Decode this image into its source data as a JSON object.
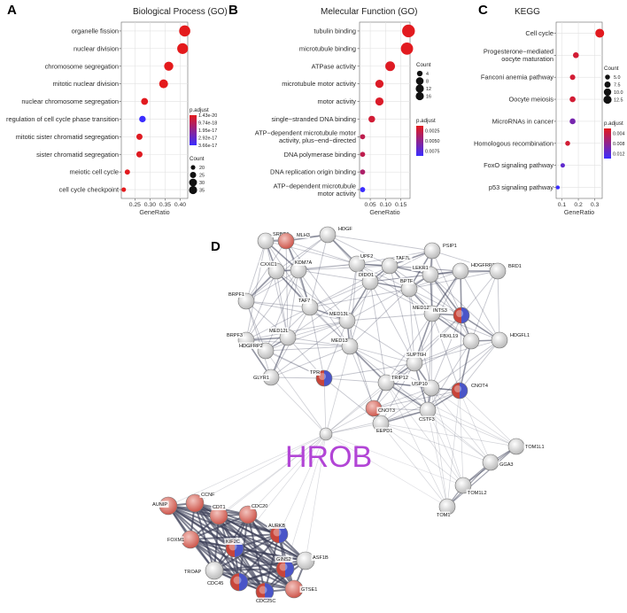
{
  "chart_data": [
    {
      "id": "A",
      "type": "scatter",
      "panel_letter": "A",
      "title": "Biological Process (GO)",
      "xlabel": "GeneRatio",
      "ylabel": "",
      "xticks": [
        0.25,
        0.3,
        0.35,
        0.4
      ],
      "xtick_labels": [
        "0.25",
        "0.30",
        "0.35",
        "0.40"
      ],
      "xlim": [
        0.205,
        0.425
      ],
      "grid": true,
      "color_scale": {
        "low": "#e41a1c",
        "high": "#3b2dff",
        "min": 1.43e-20,
        "max": 3.66e-17
      },
      "size_scale": {
        "min": 18,
        "max": 40,
        "rmin": 2.2,
        "rmax": 6.3
      },
      "legend": {
        "count_title": "Count",
        "count_values": [
          20,
          25,
          30,
          35
        ],
        "count_labels": [
          "20",
          "25",
          "30",
          "35"
        ],
        "padj_title": "p.adjust",
        "padj_labels": [
          "1.43e-20",
          "9.74e-18",
          "1.95e-17",
          "2.92e-17",
          "3.66e-17"
        ]
      },
      "terms": [
        {
          "label": "organelle fission",
          "ratio": 0.415,
          "count": 40,
          "padj": 1.5e-20
        },
        {
          "label": "nuclear division",
          "ratio": 0.408,
          "count": 39,
          "padj": 2e-20
        },
        {
          "label": "chromosome segregation",
          "ratio": 0.362,
          "count": 34,
          "padj": 3e-20
        },
        {
          "label": "mitotic nuclear division",
          "ratio": 0.345,
          "count": 33,
          "padj": 2.5e-20
        },
        {
          "label": "nuclear chromosome segregation",
          "ratio": 0.282,
          "count": 27,
          "padj": 5e-19
        },
        {
          "label": "regulation of cell cycle phase transition",
          "ratio": 0.275,
          "count": 26,
          "padj": 3.66e-17
        },
        {
          "label": "mitotic sister chromatid segregation",
          "ratio": 0.265,
          "count": 25,
          "padj": 1e-18
        },
        {
          "label": "sister chromatid segregation",
          "ratio": 0.265,
          "count": 25,
          "padj": 1e-18
        },
        {
          "label": "meiotic cell cycle",
          "ratio": 0.225,
          "count": 22,
          "padj": 5e-19
        },
        {
          "label": "cell cycle checkpoint",
          "ratio": 0.213,
          "count": 20,
          "padj": 1e-19
        }
      ]
    },
    {
      "id": "B",
      "type": "scatter",
      "panel_letter": "B",
      "title": "Melecular Function (GO)",
      "xlabel": "GeneRatio",
      "ylabel": "",
      "xticks": [
        0.05,
        0.1,
        0.15
      ],
      "xtick_labels": [
        "0.05",
        "0.10",
        "0.15"
      ],
      "xlim": [
        0.015,
        0.18
      ],
      "grid": true,
      "color_scale": {
        "low": "#e41a1c",
        "high": "#3b2dff",
        "min": 0.0,
        "max": 0.009
      },
      "size_scale": {
        "min": 2,
        "max": 18,
        "rmin": 2.6,
        "rmax": 7.2
      },
      "legend": {
        "count_title": "Count",
        "count_values": [
          4,
          8,
          12,
          16
        ],
        "count_labels": [
          "4",
          "8",
          "12",
          "16"
        ],
        "padj_title": "p.adjust",
        "padj_labels": [
          "0.0025",
          "0.0050",
          "0.0075"
        ]
      },
      "terms": [
        {
          "label": "tubulin binding",
          "ratio_lines": [
            "tubulin binding"
          ],
          "ratio": 0.175,
          "count": 18,
          "padj": 0.0001
        },
        {
          "label": "microtubule binding",
          "ratio_lines": [
            "microtubule binding"
          ],
          "ratio": 0.17,
          "count": 17,
          "padj": 0.0001
        },
        {
          "label": "ATPase activity",
          "ratio_lines": [
            "ATPase activity"
          ],
          "ratio": 0.115,
          "count": 12,
          "padj": 0.0003
        },
        {
          "label": "microtubule motor activity",
          "ratio_lines": [
            "microtubule motor activity"
          ],
          "ratio": 0.08,
          "count": 9,
          "padj": 0.0004
        },
        {
          "label": "motor activity",
          "ratio_lines": [
            "motor activity"
          ],
          "ratio": 0.08,
          "count": 9,
          "padj": 0.0005
        },
        {
          "label": "single−stranded DNA binding",
          "ratio_lines": [
            "single−stranded DNA binding"
          ],
          "ratio": 0.055,
          "count": 6,
          "padj": 0.001
        },
        {
          "label": "ATP−dependent microtubule motor activity, plus−end−directed",
          "ratio_lines": [
            "ATP−dependent microtubule motor",
            "activity, plus−end−directed"
          ],
          "ratio": 0.025,
          "count": 3,
          "padj": 0.002
        },
        {
          "label": "DNA polymerase binding",
          "ratio_lines": [
            "DNA polymerase binding"
          ],
          "ratio": 0.025,
          "count": 3,
          "padj": 0.002
        },
        {
          "label": "DNA replication origin binding",
          "ratio_lines": [
            "DNA replication origin binding"
          ],
          "ratio": 0.025,
          "count": 3,
          "padj": 0.003
        },
        {
          "label": "ATP−dependent microtubule motor activity",
          "ratio_lines": [
            "ATP−dependent microtubule",
            "motor activity"
          ],
          "ratio": 0.025,
          "count": 3,
          "padj": 0.009
        }
      ]
    },
    {
      "id": "C",
      "type": "scatter",
      "panel_letter": "C",
      "title": "KEGG",
      "xlabel": "GeneRatio",
      "ylabel": "",
      "xticks": [
        0.1,
        0.2,
        0.3
      ],
      "xtick_labels": [
        "0.1",
        "0.2",
        "0.3"
      ],
      "xlim": [
        0.065,
        0.345
      ],
      "grid": true,
      "color_scale": {
        "low": "#e41a1c",
        "high": "#3b2dff",
        "min": 0.0,
        "max": 0.014
      },
      "size_scale": {
        "min": 3,
        "max": 13,
        "rmin": 2.2,
        "rmax": 5.0
      },
      "legend": {
        "count_title": "Count",
        "count_values": [
          5.0,
          7.5,
          10.0,
          12.5
        ],
        "count_labels": [
          "5.0",
          "7.5",
          "10.0",
          "12.5"
        ],
        "padj_title": "p.adjust",
        "padj_labels": [
          "0.004",
          "0.008",
          "0.012"
        ]
      },
      "terms": [
        {
          "label": "Cell cycle",
          "ratio_lines": [
            "Cell cycle"
          ],
          "ratio": 0.33,
          "count": 13,
          "padj": 0.0002
        },
        {
          "label": "Progesterone−mediated oocyte maturation",
          "ratio_lines": [
            "Progesterone−mediated",
            "oocyte maturation"
          ],
          "ratio": 0.185,
          "count": 7,
          "padj": 0.0015
        },
        {
          "label": "Fanconi anemia pathway",
          "ratio_lines": [
            "Fanconi anemia pathway"
          ],
          "ratio": 0.165,
          "count": 6,
          "padj": 0.0015
        },
        {
          "label": "Oocyte meiosis",
          "ratio_lines": [
            "Oocyte meiosis"
          ],
          "ratio": 0.165,
          "count": 7,
          "padj": 0.0015
        },
        {
          "label": "MicroRNAs in cancer",
          "ratio_lines": [
            "MicroRNAs in cancer"
          ],
          "ratio": 0.165,
          "count": 7,
          "padj": 0.009
        },
        {
          "label": "Homologous recombination",
          "ratio_lines": [
            "Homologous recombination"
          ],
          "ratio": 0.135,
          "count": 5,
          "padj": 0.0015
        },
        {
          "label": "FoxO signaling pathway",
          "ratio_lines": [
            "FoxO signaling pathway"
          ],
          "ratio": 0.105,
          "count": 4,
          "padj": 0.011
        },
        {
          "label": "p53 signaling pathway",
          "ratio_lines": [
            "p53 signaling pathway"
          ],
          "ratio": 0.075,
          "count": 3,
          "padj": 0.014
        }
      ]
    }
  ],
  "network": {
    "panel_letter": "D",
    "center_label": "HROB",
    "colors": {
      "node_fill": "#e6e6e6",
      "red": "#c8453a",
      "blue": "#4a55c8",
      "edge": "#3c3f58",
      "center": "#b245d6"
    },
    "nodes": [
      {
        "id": "SRBD1",
        "label": "SRBD1",
        "style": "plain"
      },
      {
        "id": "MLH3",
        "label": "MLH3",
        "style": "red"
      },
      {
        "id": "HDGF",
        "label": "HDGF",
        "style": "plain"
      },
      {
        "id": "PSIP1",
        "label": "PSIP1",
        "style": "plain"
      },
      {
        "id": "UPF2",
        "label": "UPF2",
        "style": "plain"
      },
      {
        "id": "TAF7L",
        "label": "TAF7L",
        "style": "plain"
      },
      {
        "id": "CXXC1",
        "label": "CXXC1",
        "style": "plain"
      },
      {
        "id": "KDM7A",
        "label": "KDM7A",
        "style": "plain"
      },
      {
        "id": "HDGFRP3",
        "label": "HDGFRP3",
        "style": "plain"
      },
      {
        "id": "LEKR1",
        "label": "LEKR1",
        "style": "plain"
      },
      {
        "id": "BRD1",
        "label": "BRD1",
        "style": "plain"
      },
      {
        "id": "DIDO1",
        "label": "DIDO1",
        "style": "plain"
      },
      {
        "id": "BPTF",
        "label": "BPTF",
        "style": "plain"
      },
      {
        "id": "BRPF1",
        "label": "BRPF1",
        "style": "plain"
      },
      {
        "id": "TAF7",
        "label": "TAF7",
        "style": "plain"
      },
      {
        "id": "MED12",
        "label": "MED12",
        "style": "plain"
      },
      {
        "id": "INTS3",
        "label": "INTS3",
        "style": "mixed"
      },
      {
        "id": "MED13L",
        "label": "MED13L",
        "style": "plain"
      },
      {
        "id": "BRPF3",
        "label": "BRPF3",
        "style": "plain"
      },
      {
        "id": "MED12L",
        "label": "MED12L",
        "style": "plain"
      },
      {
        "id": "MED13",
        "label": "MED13",
        "style": "plain"
      },
      {
        "id": "HDGFRP2",
        "label": "HDGFRP2",
        "style": "plain"
      },
      {
        "id": "HDGFL1",
        "label": "HDGFL1",
        "style": "plain"
      },
      {
        "id": "FBXL19",
        "label": "FBXL19",
        "style": "plain"
      },
      {
        "id": "SUPT6H",
        "label": "SUPT6H",
        "style": "plain"
      },
      {
        "id": "TPR",
        "label": "TPR",
        "style": "mixed"
      },
      {
        "id": "GLYR1",
        "label": "GLYR1",
        "style": "plain"
      },
      {
        "id": "TRIP12",
        "label": "TRIP12",
        "style": "plain"
      },
      {
        "id": "USP10",
        "label": "USP10",
        "style": "plain"
      },
      {
        "id": "CNOT4",
        "label": "CNOT4",
        "style": "mixed"
      },
      {
        "id": "CNOT3",
        "label": "CNOT3",
        "style": "red"
      },
      {
        "id": "CSTF3",
        "label": "CSTF3",
        "style": "plain"
      },
      {
        "id": "EEPD1",
        "label": "EEPD1",
        "style": "plain"
      },
      {
        "id": "TOM1L1",
        "label": "TOM1L1",
        "style": "plain"
      },
      {
        "id": "GGA3",
        "label": "GGA3",
        "style": "plain"
      },
      {
        "id": "TOM1L2",
        "label": "TOM1L2",
        "style": "plain"
      },
      {
        "id": "TOM1",
        "label": "TOM1",
        "style": "plain"
      },
      {
        "id": "HROBNODE",
        "label": "",
        "style": "plain"
      },
      {
        "id": "CCNF",
        "label": "CCNF",
        "style": "red"
      },
      {
        "id": "AUNIP",
        "label": "AUNIP",
        "style": "red"
      },
      {
        "id": "CDT1",
        "label": "CDT1",
        "style": "red"
      },
      {
        "id": "CDC20",
        "label": "CDC20",
        "style": "red"
      },
      {
        "id": "AURKB",
        "label": "AURKB",
        "style": "mixed"
      },
      {
        "id": "FOXM1",
        "label": "FOXM1",
        "style": "red"
      },
      {
        "id": "KIF2C",
        "label": "KIF2C",
        "style": "mixed"
      },
      {
        "id": "TROAP",
        "label": "TROAP",
        "style": "plain"
      },
      {
        "id": "ASF1B",
        "label": "ASF1B",
        "style": "plain"
      },
      {
        "id": "GINS2",
        "label": "GINS2",
        "style": "mixed"
      },
      {
        "id": "CDC45",
        "label": "CDC45",
        "style": "mixed"
      },
      {
        "id": "CDC25C",
        "label": "CDC25C",
        "style": "mixed"
      },
      {
        "id": "GTSE1",
        "label": "GTSE1",
        "style": "red"
      }
    ]
  }
}
